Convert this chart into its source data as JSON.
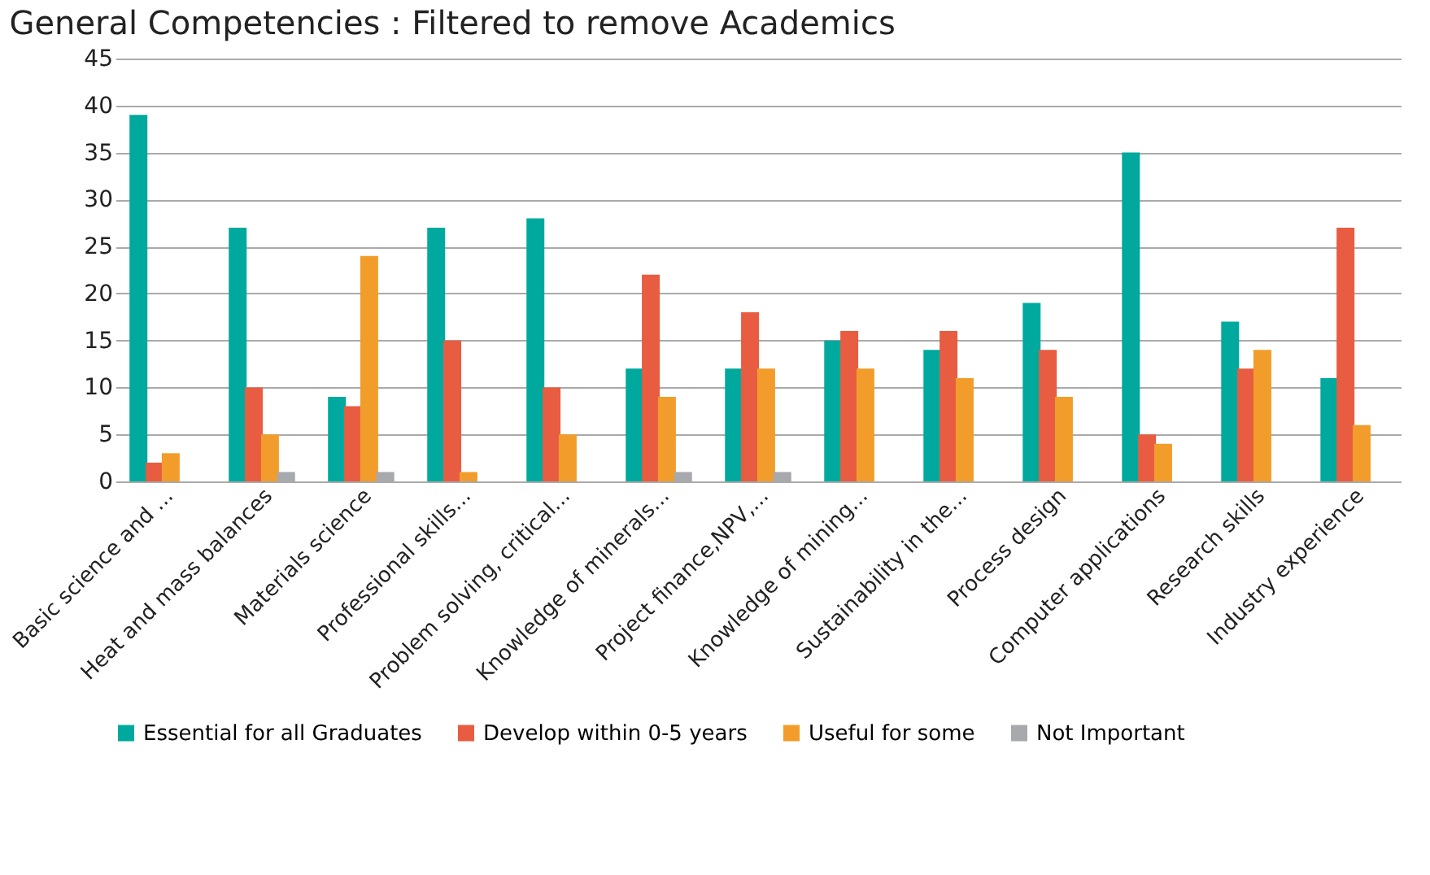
{
  "chart_data": {
    "type": "bar",
    "title": "General Competencies : Filtered to remove Academics",
    "categories": [
      "Basic science and ...",
      "Heat and mass balances",
      "Materials science",
      "Professional skills...",
      "Problem solving, critical...",
      "Knowledge of minerals...",
      "Project finance,NPV,...",
      "Knowledge of mining...",
      "Sustainability in the...",
      "Process design",
      "Computer applications",
      "Research skills",
      "Industry experience"
    ],
    "series": [
      {
        "name": "Essential for all Graduates",
        "color": "#00a99d",
        "values": [
          39,
          27,
          9,
          27,
          28,
          12,
          12,
          15,
          14,
          19,
          35,
          17,
          11
        ]
      },
      {
        "name": "Develop within 0-5 years",
        "color": "#e85c41",
        "values": [
          2,
          10,
          8,
          15,
          10,
          22,
          18,
          16,
          16,
          14,
          5,
          12,
          27
        ]
      },
      {
        "name": "Useful for some",
        "color": "#f29d2b",
        "values": [
          3,
          5,
          24,
          1,
          5,
          9,
          12,
          12,
          11,
          9,
          4,
          14,
          6
        ]
      },
      {
        "name": "Not Important",
        "color": "#a7a9ac",
        "values": [
          0,
          1,
          1,
          0,
          0,
          1,
          1,
          0,
          0,
          0,
          0,
          0,
          0
        ]
      }
    ],
    "ylim": [
      0,
      45
    ],
    "yticks": [
      0,
      5,
      10,
      15,
      20,
      25,
      30,
      35,
      40,
      45
    ],
    "grid": "y",
    "legend": "bottom"
  }
}
